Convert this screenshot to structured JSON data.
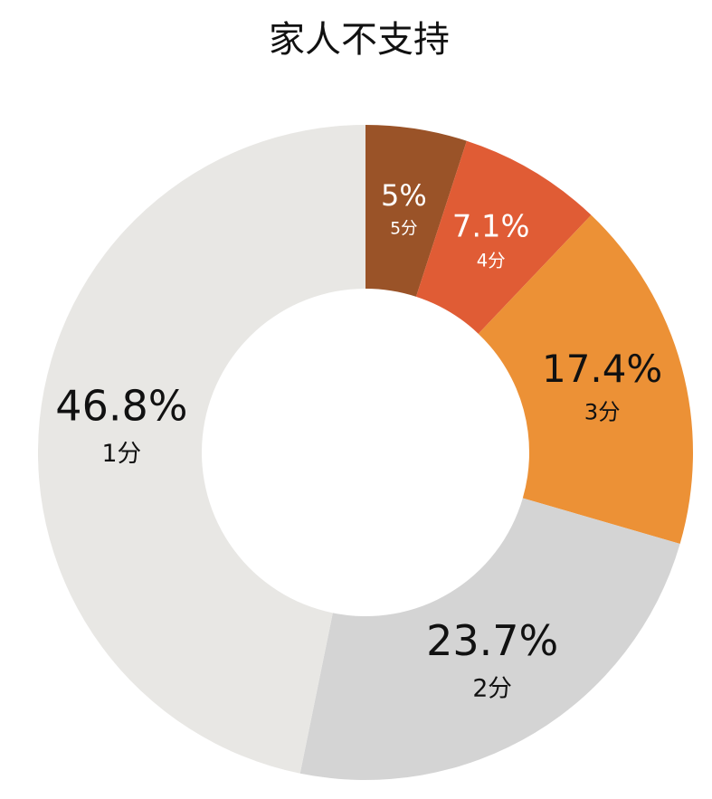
{
  "chart_data": {
    "type": "donut",
    "title": "家人不支持",
    "categories": [
      "5分",
      "4分",
      "3分",
      "2分",
      "1分"
    ],
    "values": [
      5,
      7.1,
      17.4,
      23.7,
      46.8
    ],
    "value_labels": [
      "5%",
      "7.1%",
      "17.4%",
      "23.7%",
      "46.8%"
    ],
    "colors": [
      "#9a5328",
      "#e05c35",
      "#ec9136",
      "#d4d4d4",
      "#e8e7e4"
    ]
  }
}
